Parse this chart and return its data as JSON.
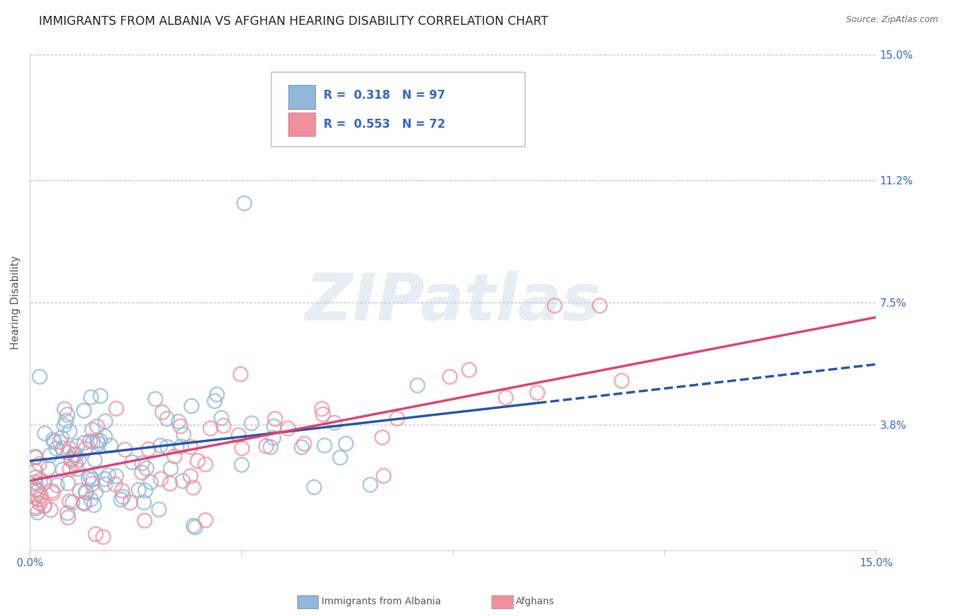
{
  "title": "IMMIGRANTS FROM ALBANIA VS AFGHAN HEARING DISABILITY CORRELATION CHART",
  "source_text": "Source: ZipAtlas.com",
  "ylabel": "Hearing Disability",
  "xmin": 0.0,
  "xmax": 0.15,
  "ymin": 0.0,
  "ymax": 0.15,
  "ytick_labels": [
    "3.8%",
    "7.5%",
    "11.2%",
    "15.0%"
  ],
  "ytick_values": [
    0.038,
    0.075,
    0.112,
    0.15
  ],
  "xtick_values": [
    0.0,
    0.0375,
    0.075,
    0.1125,
    0.15
  ],
  "xtick_labels": [
    "0.0%",
    "",
    "",
    "",
    "15.0%"
  ],
  "albania_R": "0.318",
  "albania_N": "97",
  "afghan_R": "0.553",
  "afghan_N": "72",
  "albania_scatter_color": "#90b8d8",
  "afghan_scatter_color": "#f0909c",
  "albania_line_color": "#2255aa",
  "afghan_line_color": "#e04070",
  "watermark_text": "ZIPatlas",
  "background_color": "#ffffff",
  "grid_color": "#bbbbbb",
  "axis_label_color": "#3366cc",
  "title_color": "#222222",
  "title_fontsize": 12.5,
  "axis_fontsize": 11,
  "legend_label1": "Immigrants from Albania",
  "legend_label2": "Afghans"
}
